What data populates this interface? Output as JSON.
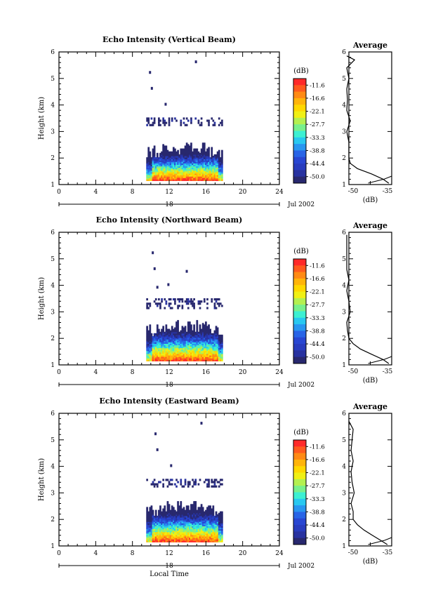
{
  "figure": {
    "xlabel": "Local Time",
    "date_label": "Jul 2002",
    "day_label": "18"
  },
  "colorbar": {
    "unit": "(dB)",
    "ticks": [
      "-11.6",
      "-16.6",
      "-22.1",
      "-27.7",
      "-33.3",
      "-38.8",
      "-44.4",
      "-50.0"
    ],
    "colors": [
      "#ff2a2a",
      "#ff5a1e",
      "#ff8a14",
      "#ffb40a",
      "#ffd800",
      "#f0f014",
      "#b4f050",
      "#78f08c",
      "#3cf0d2",
      "#28c8f0",
      "#2896f0",
      "#2864e6",
      "#2846d2",
      "#283cbe",
      "#2832a0",
      "#28286e"
    ]
  },
  "panels": [
    {
      "title": "Echo Intensity (Vertical Beam)",
      "ylabel": "Height (km)",
      "avg_title": "Average",
      "avg_xlabel": "(dB)",
      "avg_xticks": [
        "-50",
        "-35"
      ]
    },
    {
      "title": "Echo Intensity (Northward Beam)",
      "ylabel": "Height (km)",
      "avg_title": "Average",
      "avg_xlabel": "(dB)",
      "avg_xticks": [
        "-50",
        "-35"
      ]
    },
    {
      "title": "Echo Intensity (Eastward Beam)",
      "ylabel": "Height (km)",
      "avg_title": "Average",
      "avg_xlabel": "(dB)",
      "avg_xticks": [
        "-50",
        "-35"
      ]
    }
  ],
  "chart_data": [
    {
      "type": "heatmap",
      "title": "Echo Intensity (Vertical Beam)",
      "xlabel": "",
      "ylabel": "Height (km)",
      "xlim": [
        0,
        24
      ],
      "ylim": [
        1,
        6
      ],
      "xticks": [
        0,
        4,
        8,
        12,
        16,
        20,
        24
      ],
      "yticks": [
        1,
        2,
        3,
        4,
        5,
        6
      ],
      "zlim": [
        -50.0,
        -11.6
      ],
      "echo_start_hour": 9.5,
      "echo_end_hour": 17.8,
      "layers": [
        {
          "name": "",
          "bottom_km": 1.15,
          "top_km": 2.2,
          "intensity_db": -33.0
        },
        {
          "name": "",
          "bottom_km": 3.2,
          "top_km": 3.5,
          "intensity_db": -46.0
        }
      ],
      "average_profile": {
        "title": "Average",
        "xlabel": "(dB)",
        "xlim": [
          -50,
          -35
        ],
        "height_km": [
          1.05,
          1.2,
          1.4,
          1.6,
          1.8,
          2.0,
          2.3,
          2.6,
          3.0,
          3.4,
          3.8,
          4.2,
          4.6,
          5.0,
          5.4,
          5.7,
          5.85
        ],
        "value_db": [
          -36,
          -38,
          -42,
          -47,
          -49.5,
          -50,
          -50,
          -50,
          -51,
          -49.5,
          -51,
          -50.5,
          -51,
          -50,
          -51,
          -48,
          -52
        ]
      }
    },
    {
      "type": "heatmap",
      "title": "Echo Intensity (Northward Beam)",
      "xlabel": "",
      "ylabel": "Height (km)",
      "xlim": [
        0,
        24
      ],
      "ylim": [
        1,
        6
      ],
      "xticks": [
        0,
        4,
        8,
        12,
        16,
        20,
        24
      ],
      "yticks": [
        1,
        2,
        3,
        4,
        5,
        6
      ],
      "zlim": [
        -50.0,
        -11.6
      ],
      "echo_start_hour": 9.5,
      "echo_end_hour": 17.8,
      "layers": [
        {
          "name": "",
          "bottom_km": 1.15,
          "top_km": 2.3,
          "intensity_db": -33.0
        },
        {
          "name": "",
          "bottom_km": 3.1,
          "top_km": 3.5,
          "intensity_db": -46.0
        }
      ],
      "average_profile": {
        "title": "Average",
        "xlabel": "(dB)",
        "xlim": [
          -50,
          -35
        ],
        "height_km": [
          1.05,
          1.2,
          1.4,
          1.6,
          1.8,
          2.0,
          2.3,
          2.6,
          3.0,
          3.4,
          3.8,
          4.2,
          4.6,
          5.0,
          5.4,
          5.7,
          5.9
        ],
        "value_db": [
          -36,
          -38,
          -42,
          -46,
          -48.5,
          -50,
          -50.5,
          -51,
          -49.5,
          -50,
          -51,
          -50,
          -51,
          -51,
          -52,
          -52,
          -52
        ]
      }
    },
    {
      "type": "heatmap",
      "title": "Echo Intensity (Eastward Beam)",
      "xlabel": "Local Time",
      "ylabel": "Height (km)",
      "xlim": [
        0,
        24
      ],
      "ylim": [
        1,
        6
      ],
      "xticks": [
        0,
        4,
        8,
        12,
        16,
        20,
        24
      ],
      "yticks": [
        1,
        2,
        3,
        4,
        5,
        6
      ],
      "zlim": [
        -50.0,
        -11.6
      ],
      "echo_start_hour": 9.5,
      "echo_end_hour": 17.8,
      "layers": [
        {
          "name": "",
          "bottom_km": 1.15,
          "top_km": 2.3,
          "intensity_db": -33.0
        },
        {
          "name": "",
          "bottom_km": 3.2,
          "top_km": 3.5,
          "intensity_db": -46.0
        }
      ],
      "average_profile": {
        "title": "Average",
        "xlabel": "(dB)",
        "xlim": [
          -55,
          -35
        ],
        "height_km": [
          1.05,
          1.2,
          1.4,
          1.6,
          1.8,
          2.0,
          2.3,
          2.6,
          3.0,
          3.4,
          3.8,
          4.2,
          4.6,
          5.0,
          5.4,
          5.7
        ],
        "value_db": [
          -37,
          -40,
          -44,
          -48,
          -51,
          -53,
          -53,
          -54,
          -52.5,
          -53.5,
          -54,
          -53,
          -54,
          -53.5,
          -53,
          -55
        ]
      }
    }
  ]
}
